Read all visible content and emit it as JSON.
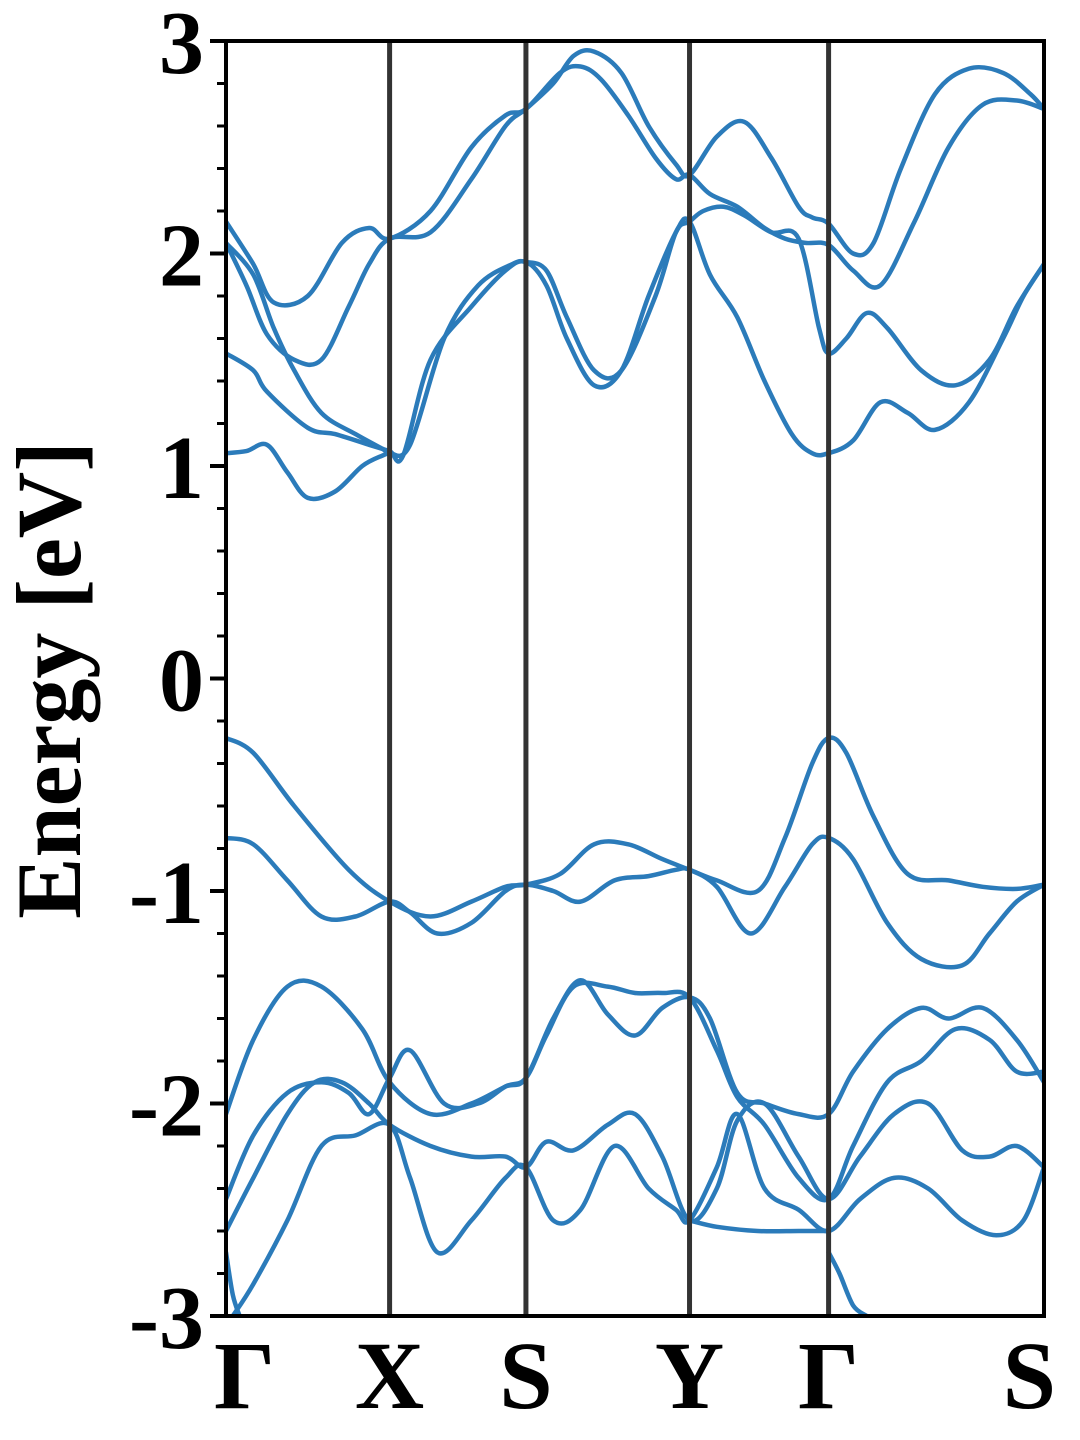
{
  "chart_data": {
    "type": "line",
    "title": "",
    "xlabel": "",
    "ylabel": "Energy [eV]",
    "ylim": [
      -3,
      3
    ],
    "yticks": [
      {
        "value": 3,
        "label": "3"
      },
      {
        "value": 2,
        "label": "2"
      },
      {
        "value": 1,
        "label": "1"
      },
      {
        "value": 0,
        "label": "0"
      },
      {
        "value": -1,
        "label": "-1"
      },
      {
        "value": -2,
        "label": "-2"
      },
      {
        "value": -3,
        "label": "-3"
      }
    ],
    "yminor_step": 0.2,
    "xlim": [
      0,
      6
    ],
    "kpoints": [
      {
        "label": "Γ",
        "x": 0
      },
      {
        "label": "X",
        "x": 1.2
      },
      {
        "label": "S",
        "x": 2.2
      },
      {
        "label": "Y",
        "x": 3.4
      },
      {
        "label": "Γ",
        "x": 4.42
      },
      {
        "label": "S",
        "x": 6
      }
    ],
    "grid": false,
    "legend": "none",
    "line_color": "#2b7bba",
    "divider_color": "#333333",
    "series": [
      {
        "x": [
          0,
          0.2,
          0.35,
          0.6,
          0.85,
          1.05,
          1.2,
          1.5,
          1.8,
          2.05,
          2.2,
          2.45,
          2.6,
          2.75,
          2.95,
          3.15,
          3.3,
          3.4,
          3.55,
          3.75,
          3.95,
          4.1,
          4.25,
          4.42,
          4.6,
          4.8,
          5.05,
          5.3,
          5.55,
          5.8,
          6
        ],
        "y": [
          2.15,
          1.95,
          1.77,
          1.8,
          2.05,
          2.12,
          2.07,
          2.2,
          2.5,
          2.65,
          2.68,
          2.85,
          2.88,
          2.82,
          2.65,
          2.45,
          2.35,
          2.37,
          2.28,
          2.22,
          2.12,
          2.07,
          2.05,
          2.04,
          1.92,
          1.85,
          2.15,
          2.5,
          2.7,
          2.72,
          2.68
        ]
      },
      {
        "x": [
          0,
          0.15,
          0.3,
          0.5,
          0.7,
          0.9,
          1.05,
          1.2,
          1.5,
          1.8,
          2.05,
          2.2,
          2.4,
          2.55,
          2.7,
          2.9,
          3.1,
          3.3,
          3.4,
          3.6,
          3.8,
          4.0,
          4.2,
          4.3,
          4.42,
          4.6,
          4.75,
          4.95,
          5.2,
          5.45,
          5.7,
          5.9,
          6
        ],
        "y": [
          2.05,
          1.85,
          1.62,
          1.5,
          1.5,
          1.75,
          1.95,
          2.07,
          2.1,
          2.35,
          2.6,
          2.68,
          2.8,
          2.93,
          2.95,
          2.85,
          2.6,
          2.42,
          2.37,
          2.55,
          2.62,
          2.45,
          2.22,
          2.17,
          2.14,
          2.0,
          2.05,
          2.4,
          2.75,
          2.87,
          2.85,
          2.75,
          2.68
        ]
      },
      {
        "x": [
          0,
          0.2,
          0.35,
          0.5,
          0.7,
          0.95,
          1.15,
          1.2,
          1.35,
          1.6,
          1.85,
          2.1,
          2.2,
          2.35,
          2.5,
          2.7,
          2.9,
          3.15,
          3.3,
          3.4,
          3.5,
          3.65,
          3.8,
          4.0,
          4.2,
          4.35,
          4.42,
          4.55,
          4.7,
          4.85,
          5.1,
          5.35,
          5.6,
          5.8,
          6
        ],
        "y": [
          2.05,
          1.9,
          1.65,
          1.45,
          1.25,
          1.15,
          1.08,
          1.06,
          1.1,
          1.6,
          1.85,
          1.95,
          1.96,
          1.92,
          1.7,
          1.45,
          1.45,
          1.8,
          2.1,
          2.15,
          2.2,
          2.22,
          2.18,
          2.1,
          2.07,
          1.65,
          1.53,
          1.6,
          1.72,
          1.65,
          1.45,
          1.38,
          1.5,
          1.75,
          1.95
        ]
      },
      {
        "x": [
          0,
          0.2,
          0.3,
          0.6,
          0.8,
          1.05,
          1.2,
          1.3,
          1.5,
          1.8,
          2.05,
          2.2,
          2.35,
          2.5,
          2.7,
          2.9,
          3.1,
          3.3,
          3.4,
          3.55,
          3.75,
          3.95,
          4.15,
          4.3,
          4.42,
          4.6,
          4.8,
          5.0,
          5.2,
          5.45,
          5.7,
          5.85,
          6
        ],
        "y": [
          1.53,
          1.45,
          1.35,
          1.18,
          1.15,
          1.1,
          1.07,
          1.05,
          1.5,
          1.75,
          1.92,
          1.96,
          1.85,
          1.6,
          1.38,
          1.45,
          1.8,
          2.1,
          2.15,
          1.9,
          1.7,
          1.4,
          1.15,
          1.06,
          1.06,
          1.12,
          1.3,
          1.25,
          1.17,
          1.3,
          1.6,
          1.8,
          1.95
        ]
      },
      {
        "x": [
          0,
          0.15,
          0.3,
          0.45,
          0.6,
          0.8,
          1.0,
          1.15,
          1.2
        ],
        "y": [
          1.06,
          1.07,
          1.1,
          0.97,
          0.85,
          0.88,
          1.0,
          1.05,
          1.06
        ]
      },
      {
        "x": [
          0,
          0.2,
          0.5,
          0.9,
          1.2,
          1.5,
          1.8,
          2.05,
          2.2,
          2.45,
          2.7,
          2.95,
          3.2,
          3.4,
          3.6,
          3.9,
          4.1,
          4.3,
          4.42,
          4.55,
          4.75,
          5.0,
          5.3,
          5.55,
          5.8,
          6
        ],
        "y": [
          -0.28,
          -0.35,
          -0.6,
          -0.9,
          -1.05,
          -1.12,
          -1.05,
          -0.98,
          -0.97,
          -0.92,
          -0.78,
          -0.78,
          -0.85,
          -0.9,
          -0.95,
          -1.0,
          -0.75,
          -0.4,
          -0.28,
          -0.35,
          -0.65,
          -0.92,
          -0.95,
          -0.98,
          -0.99,
          -0.97
        ]
      },
      {
        "x": [
          0,
          0.2,
          0.45,
          0.7,
          0.95,
          1.2,
          1.35,
          1.55,
          1.8,
          2.05,
          2.2,
          2.4,
          2.6,
          2.85,
          3.1,
          3.3,
          3.4,
          3.6,
          3.85,
          4.1,
          4.3,
          4.42,
          4.6,
          4.85,
          5.1,
          5.4,
          5.6,
          5.8,
          6
        ],
        "y": [
          -0.75,
          -0.78,
          -0.95,
          -1.12,
          -1.12,
          -1.05,
          -1.1,
          -1.2,
          -1.15,
          -1.0,
          -0.97,
          -1.0,
          -1.05,
          -0.95,
          -0.93,
          -0.9,
          -0.9,
          -0.98,
          -1.2,
          -0.98,
          -0.78,
          -0.75,
          -0.85,
          -1.15,
          -1.32,
          -1.35,
          -1.2,
          -1.05,
          -0.97
        ]
      },
      {
        "x": [
          0,
          0.2,
          0.45,
          0.7,
          1.0,
          1.2,
          1.5,
          1.8,
          2.05,
          2.2,
          2.4,
          2.6,
          2.8,
          3.0,
          3.2,
          3.4,
          3.55,
          3.75,
          3.95,
          4.2,
          4.42,
          4.6,
          4.85,
          5.1,
          5.3,
          5.55,
          5.8,
          6
        ],
        "y": [
          -2.05,
          -1.7,
          -1.45,
          -1.45,
          -1.65,
          -1.9,
          -2.05,
          -2.0,
          -1.92,
          -1.88,
          -1.6,
          -1.42,
          -1.58,
          -1.68,
          -1.55,
          -1.5,
          -1.6,
          -1.95,
          -2.0,
          -2.05,
          -2.05,
          -1.85,
          -1.65,
          -1.55,
          -1.6,
          -1.55,
          -1.7,
          -1.9
        ]
      },
      {
        "x": [
          0,
          0.2,
          0.45,
          0.7,
          0.9,
          1.05,
          1.2,
          1.35,
          1.6,
          1.85,
          2.05,
          2.2,
          2.35,
          2.55,
          2.8,
          3.0,
          3.2,
          3.4,
          3.6,
          3.75,
          3.95,
          4.2,
          4.42,
          4.6,
          4.85,
          5.1,
          5.35,
          5.6,
          5.8,
          6
        ],
        "y": [
          -2.45,
          -2.15,
          -1.95,
          -1.9,
          -1.95,
          -2.05,
          -1.88,
          -1.75,
          -2.0,
          -2.0,
          -1.92,
          -1.88,
          -1.68,
          -1.45,
          -1.45,
          -1.48,
          -1.48,
          -1.5,
          -1.75,
          -1.97,
          -2.1,
          -2.35,
          -2.45,
          -2.2,
          -1.9,
          -1.8,
          -1.65,
          -1.7,
          -1.85,
          -1.85
        ]
      },
      {
        "x": [
          0,
          0.2,
          0.45,
          0.65,
          0.85,
          1.05,
          1.2,
          1.5,
          1.8,
          2.05,
          2.2,
          2.35,
          2.55,
          2.8,
          3.0,
          3.2,
          3.4,
          3.6,
          3.75,
          3.95,
          4.2,
          4.42,
          4.65,
          4.9,
          5.15,
          5.4,
          5.6,
          5.8,
          6
        ],
        "y": [
          -2.6,
          -2.35,
          -2.05,
          -1.9,
          -1.9,
          -2.0,
          -2.1,
          -2.2,
          -2.25,
          -2.25,
          -2.3,
          -2.18,
          -2.22,
          -2.1,
          -2.05,
          -2.25,
          -2.55,
          -2.4,
          -2.08,
          -2.0,
          -2.25,
          -2.45,
          -2.25,
          -2.05,
          -2.0,
          -2.22,
          -2.25,
          -2.2,
          -2.3
        ]
      },
      {
        "x": [
          0.05,
          0.2,
          0.45,
          0.7,
          0.95,
          1.2,
          1.35,
          1.55,
          1.8,
          2.05,
          2.2,
          2.4,
          2.6,
          2.85,
          3.1,
          3.3,
          3.4,
          3.6,
          3.75,
          3.95,
          4.2,
          4.42,
          4.65,
          4.9,
          5.15,
          5.4,
          5.65,
          5.85,
          6
        ],
        "y": [
          -3.0,
          -2.85,
          -2.55,
          -2.2,
          -2.15,
          -2.1,
          -2.35,
          -2.7,
          -2.55,
          -2.35,
          -2.3,
          -2.55,
          -2.5,
          -2.2,
          -2.4,
          -2.5,
          -2.55,
          -2.3,
          -2.05,
          -2.4,
          -2.5,
          -2.6,
          -2.45,
          -2.35,
          -2.4,
          -2.55,
          -2.62,
          -2.55,
          -2.3
        ]
      },
      {
        "x": [
          3.4,
          3.6,
          3.9,
          4.2,
          4.42
        ],
        "y": [
          -2.55,
          -2.58,
          -2.6,
          -2.6,
          -2.6
        ]
      },
      {
        "x": [
          0,
          0.05,
          0.1
        ],
        "y": [
          -2.7,
          -2.9,
          -3.0
        ]
      },
      {
        "x": [
          4.42,
          4.5,
          4.6,
          4.7
        ],
        "y": [
          -2.7,
          -2.8,
          -2.95,
          -3.0
        ]
      }
    ]
  }
}
